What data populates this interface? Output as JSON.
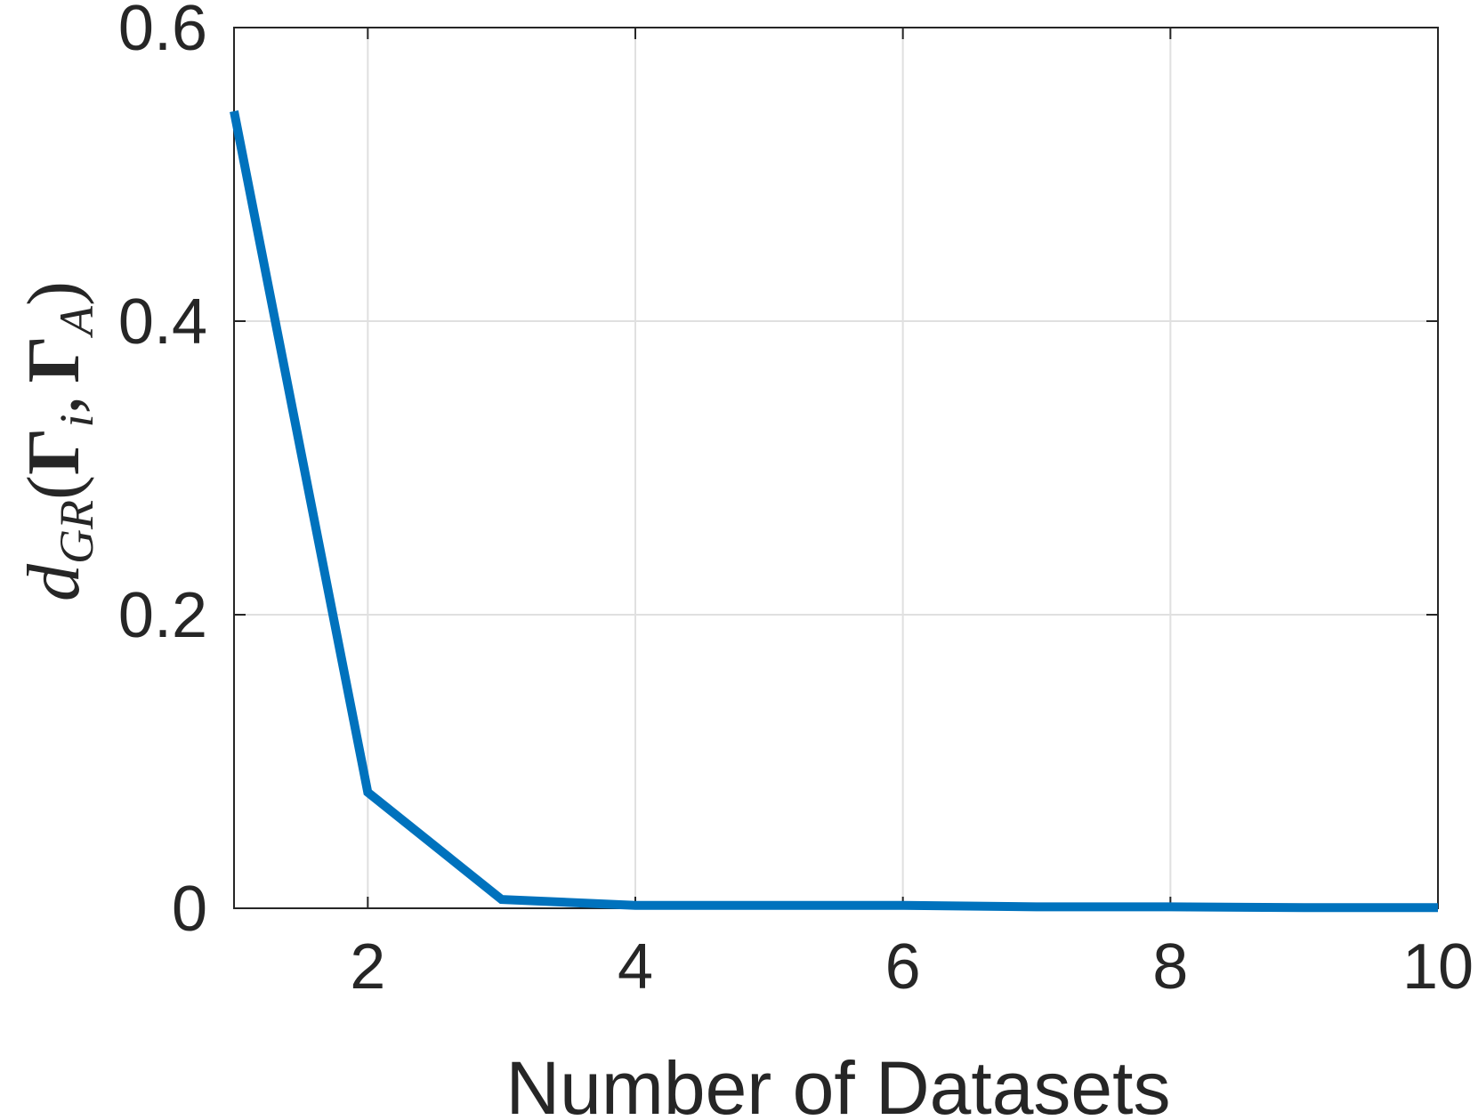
{
  "chart_data": {
    "type": "line",
    "xlabel": "Number of Datasets",
    "ylabel": {
      "d": "d",
      "d_sub": "GR",
      "open": "(",
      "gamma1": "Γ",
      "gamma1_sub": "i",
      "comma": ",",
      "gamma2": "Γ",
      "gamma2_sub": "A",
      "close": ")"
    },
    "xlim": [
      1,
      10
    ],
    "ylim": [
      0,
      0.6
    ],
    "xticks": [
      2,
      4,
      6,
      8,
      10
    ],
    "xtick_labels": [
      "2",
      "4",
      "6",
      "8",
      "10"
    ],
    "yticks": [
      0,
      0.2,
      0.4,
      0.6
    ],
    "ytick_labels": [
      "0",
      "0.2",
      "0.4",
      "0.6"
    ],
    "grid": true,
    "series": [
      {
        "color": "#0072BD",
        "x": [
          1,
          2,
          3,
          4,
          5,
          6,
          7,
          8,
          9,
          10
        ],
        "y": [
          0.543,
          0.079,
          0.006,
          0.002,
          0.002,
          0.002,
          0.001,
          0.001,
          0.0005,
          0.0005
        ]
      }
    ]
  }
}
